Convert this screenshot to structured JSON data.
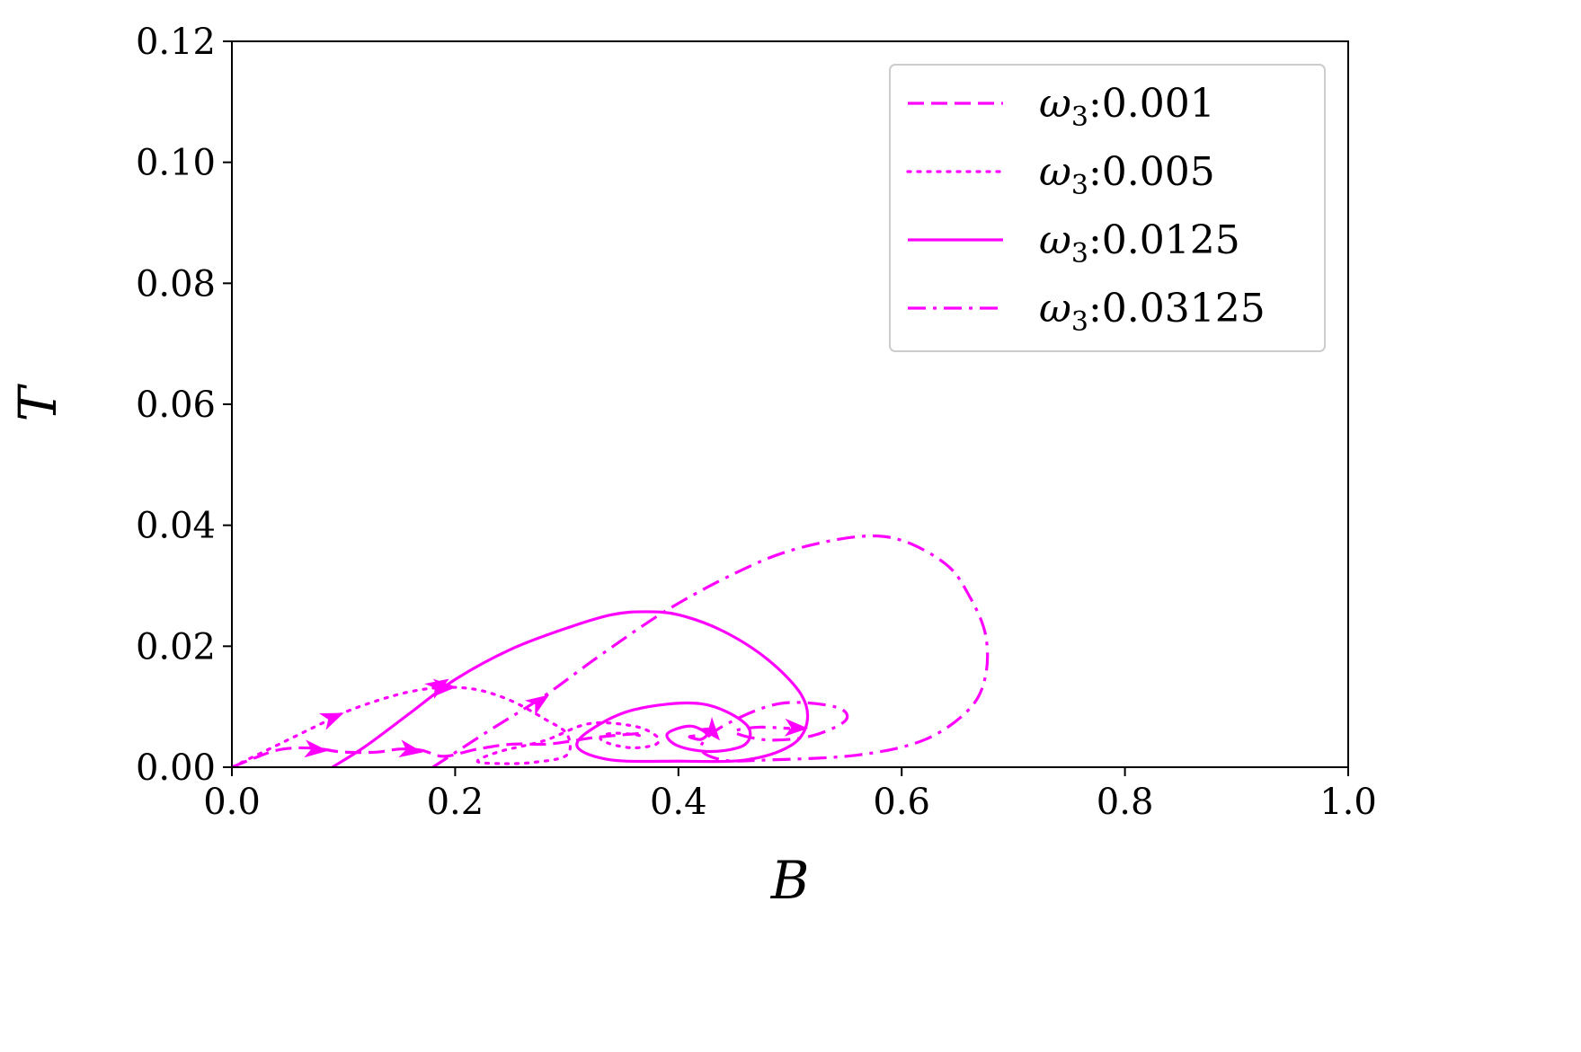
{
  "chart_data": {
    "type": "line",
    "title": "",
    "xlabel": "B",
    "ylabel": "T",
    "xlim": [
      0.0,
      1.0
    ],
    "ylim": [
      0.0,
      0.12
    ],
    "xticks": [
      "0.0",
      "0.2",
      "0.4",
      "0.6",
      "0.8",
      "1.0"
    ],
    "yticks": [
      "0.00",
      "0.02",
      "0.04",
      "0.06",
      "0.08",
      "0.10",
      "0.12"
    ],
    "grid": false,
    "legend_position": "top-right",
    "color": "#ff00ff",
    "series": [
      {
        "name": "ω3:0.001",
        "legend_symbol": "ω",
        "legend_sub": "3",
        "legend_value": ":0.001",
        "style": "dashed",
        "x": [
          0.0,
          0.02,
          0.04,
          0.06,
          0.08,
          0.1,
          0.13,
          0.15,
          0.17,
          0.19,
          0.22,
          0.25,
          0.28,
          0.3,
          0.32,
          0.34,
          0.36,
          0.37
        ],
        "y": [
          0.0,
          0.0015,
          0.0028,
          0.0032,
          0.003,
          0.0025,
          0.0025,
          0.003,
          0.0028,
          0.0018,
          0.003,
          0.0038,
          0.0038,
          0.0042,
          0.0048,
          0.0052,
          0.0055,
          0.0056
        ],
        "arrows": [
          [
            0.075,
            0.0029
          ],
          [
            0.16,
            0.0028
          ]
        ]
      },
      {
        "name": "ω3:0.005",
        "legend_symbol": "ω",
        "legend_sub": "3",
        "legend_value": ":0.005",
        "style": "dotted",
        "x": [
          0.0,
          0.05,
          0.08,
          0.1,
          0.13,
          0.16,
          0.19,
          0.22,
          0.25,
          0.28,
          0.3,
          0.3,
          0.27,
          0.24,
          0.22,
          0.24,
          0.28,
          0.32,
          0.36,
          0.38,
          0.38,
          0.36,
          0.34,
          0.33,
          0.34,
          0.36,
          0.37
        ],
        "y": [
          0.0,
          0.0045,
          0.0072,
          0.009,
          0.011,
          0.0125,
          0.0132,
          0.0128,
          0.011,
          0.008,
          0.0055,
          0.002,
          0.0008,
          0.0006,
          0.001,
          0.0026,
          0.0044,
          0.0072,
          0.0068,
          0.0052,
          0.0038,
          0.0032,
          0.0038,
          0.0048,
          0.0056,
          0.0054,
          0.005
        ],
        "arrows": [
          [
            0.09,
            0.0082
          ],
          [
            0.19,
            0.0132
          ]
        ]
      },
      {
        "name": "ω3:0.0125",
        "legend_symbol": "ω",
        "legend_sub": "3",
        "legend_value": ":0.0125",
        "style": "solid",
        "x": [
          0.09,
          0.12,
          0.16,
          0.2,
          0.25,
          0.3,
          0.34,
          0.37,
          0.4,
          0.44,
          0.48,
          0.51,
          0.515,
          0.5,
          0.46,
          0.4,
          0.34,
          0.31,
          0.32,
          0.36,
          0.42,
          0.46,
          0.46,
          0.43,
          0.4,
          0.39,
          0.41,
          0.425,
          0.42,
          0.41,
          0.415
        ],
        "y": [
          0.0,
          0.0035,
          0.009,
          0.0145,
          0.0195,
          0.023,
          0.0252,
          0.0257,
          0.0252,
          0.0225,
          0.0178,
          0.012,
          0.0072,
          0.0035,
          0.0012,
          0.001,
          0.0012,
          0.0032,
          0.006,
          0.0095,
          0.0105,
          0.0072,
          0.0038,
          0.0026,
          0.0035,
          0.0055,
          0.0068,
          0.0056,
          0.0046,
          0.005,
          0.0052
        ],
        "arrows": [
          [
            0.185,
            0.0135
          ],
          [
            0.43,
            0.006
          ]
        ]
      },
      {
        "name": "ω3:0.03125",
        "legend_symbol": "ω",
        "legend_sub": "3",
        "legend_value": ":0.03125",
        "style": "dashdot",
        "x": [
          0.18,
          0.23,
          0.28,
          0.33,
          0.39,
          0.45,
          0.5,
          0.56,
          0.6,
          0.64,
          0.66,
          0.675,
          0.675,
          0.66,
          0.62,
          0.56,
          0.48,
          0.44,
          0.42,
          0.44,
          0.49,
          0.54,
          0.55,
          0.52,
          0.48,
          0.45,
          0.47,
          0.5
        ],
        "y": [
          0.0,
          0.006,
          0.0118,
          0.0185,
          0.026,
          0.032,
          0.0358,
          0.0381,
          0.0375,
          0.0335,
          0.0285,
          0.022,
          0.015,
          0.0095,
          0.0045,
          0.002,
          0.0012,
          0.0012,
          0.0032,
          0.0068,
          0.0105,
          0.01,
          0.0078,
          0.0052,
          0.0045,
          0.0058,
          0.0066,
          0.0064
        ],
        "arrows": [
          [
            0.275,
            0.0108
          ],
          [
            0.505,
            0.0065
          ]
        ]
      }
    ]
  }
}
